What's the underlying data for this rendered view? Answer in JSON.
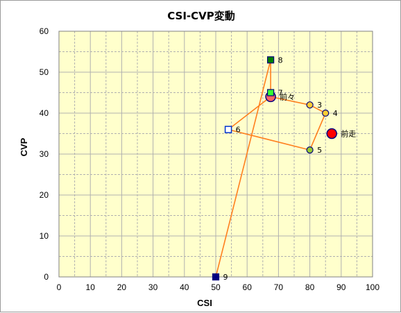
{
  "chart_data": {
    "type": "scatter",
    "title": "CSI-CVP変動",
    "xlabel": "CSI",
    "ylabel": "CVP",
    "xlim": [
      0,
      100
    ],
    "ylim": [
      0,
      60
    ],
    "xticks": [
      0,
      10,
      20,
      30,
      40,
      50,
      60,
      70,
      80,
      90,
      100
    ],
    "yticks": [
      0,
      10,
      20,
      30,
      40,
      50,
      60
    ],
    "grid": true,
    "legend": "none",
    "colors": {
      "plot_background": "#ffffcc",
      "grid": "#b0b0b0",
      "line": "#ff7f1e"
    },
    "line_order": [
      "9",
      "8",
      "前々",
      "3",
      "4",
      "5",
      "6",
      "前々"
    ],
    "points": [
      {
        "label": "前走",
        "x": 87,
        "y": 35,
        "marker": "circle-large",
        "fill": "#ff0000",
        "stroke": "#000080"
      },
      {
        "label": "前々",
        "x": 67.5,
        "y": 44,
        "marker": "circle-large",
        "fill": "#ff6666",
        "stroke": "#000080"
      },
      {
        "label": "3",
        "x": 80,
        "y": 42,
        "marker": "circle",
        "fill": "#ffcc33",
        "stroke": "#000080"
      },
      {
        "label": "4",
        "x": 85,
        "y": 40,
        "marker": "circle",
        "fill": "#ffcc33",
        "stroke": "#000080"
      },
      {
        "label": "5",
        "x": 80,
        "y": 31,
        "marker": "circle",
        "fill": "#99cc33",
        "stroke": "#000080"
      },
      {
        "label": "6",
        "x": 54,
        "y": 36,
        "marker": "square-open",
        "fill": "#ffffff",
        "stroke": "#0033cc"
      },
      {
        "label": "7",
        "x": 67.5,
        "y": 45,
        "marker": "square",
        "fill": "#33ff33",
        "stroke": "#000080"
      },
      {
        "label": "8",
        "x": 67.5,
        "y": 53,
        "marker": "square",
        "fill": "#008000",
        "stroke": "#000080"
      },
      {
        "label": "9",
        "x": 50,
        "y": 0,
        "marker": "square",
        "fill": "#000080",
        "stroke": "#000080"
      }
    ]
  }
}
